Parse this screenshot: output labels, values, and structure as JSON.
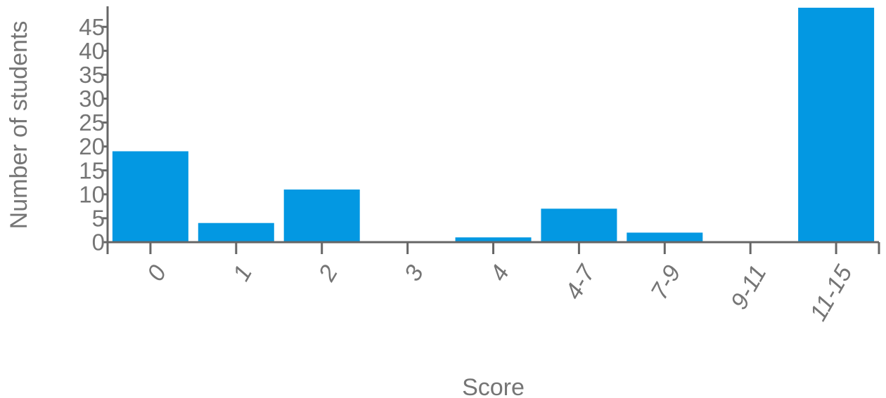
{
  "colors": {
    "bar": "#0398e2",
    "axis": "#666666",
    "text": "#757575"
  },
  "chart_data": {
    "type": "bar",
    "categories": [
      "0",
      "1",
      "2",
      "3",
      "4",
      "4-7",
      "7-9",
      "9-11",
      "11-15"
    ],
    "values": [
      19,
      4,
      11,
      0,
      1,
      7,
      2,
      0,
      49
    ],
    "xlabel": "Score",
    "ylabel": "Number of students",
    "ylim": [
      0,
      49
    ],
    "yticks": [
      0,
      5,
      10,
      15,
      20,
      25,
      30,
      35,
      40,
      45
    ],
    "grid": false,
    "legend": "none"
  }
}
